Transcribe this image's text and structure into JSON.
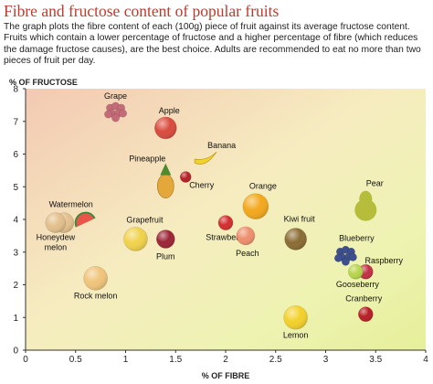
{
  "chart_data": {
    "type": "scatter",
    "title": "Fibre and fructose content of popular fruits",
    "subtitle": "The graph plots the fibre content of each (100g) piece of fruit against its average fructose content. Fruits which contain a lower percentage of fructose and a higher percentage of fibre (which reduces the damage fructose causes), are the best choice. Adults are recommended to eat no more than two pieces of fruit per day.",
    "xlabel": "% OF FIBRE",
    "ylabel": "% OF FRUCTOSE",
    "xlim": [
      0,
      4
    ],
    "ylim": [
      0,
      8
    ],
    "xticks": [
      "0",
      "0.5",
      "1",
      "1.5",
      "2",
      "2.5",
      "3",
      "3.5",
      "4"
    ],
    "yticks": [
      "0",
      "1",
      "2",
      "3",
      "4",
      "5",
      "6",
      "7",
      "8"
    ],
    "grid": false,
    "points": [
      {
        "label": "Grape",
        "x": 0.9,
        "y": 7.3
      },
      {
        "label": "Apple",
        "x": 1.4,
        "y": 6.8
      },
      {
        "label": "Banana",
        "x": 1.8,
        "y": 5.9
      },
      {
        "label": "Pineapple",
        "x": 1.4,
        "y": 5.1
      },
      {
        "label": "Cherry",
        "x": 1.6,
        "y": 5.3
      },
      {
        "label": "Orange",
        "x": 2.3,
        "y": 4.4
      },
      {
        "label": "Pear",
        "x": 3.4,
        "y": 4.4
      },
      {
        "label": "Watermelon",
        "x": 0.6,
        "y": 3.9
      },
      {
        "label": "Honeydew melon",
        "x": 0.3,
        "y": 3.9
      },
      {
        "label": "Grapefruit",
        "x": 1.1,
        "y": 3.4
      },
      {
        "label": "Strawberry",
        "x": 2.0,
        "y": 3.9
      },
      {
        "label": "Plum",
        "x": 1.4,
        "y": 3.4
      },
      {
        "label": "Peach",
        "x": 2.2,
        "y": 3.5
      },
      {
        "label": "Kiwi fruit",
        "x": 2.7,
        "y": 3.4
      },
      {
        "label": "Blueberry",
        "x": 3.2,
        "y": 2.9
      },
      {
        "label": "Raspberry",
        "x": 3.4,
        "y": 2.4
      },
      {
        "label": "Gooseberry",
        "x": 3.3,
        "y": 2.4
      },
      {
        "label": "Rock melon",
        "x": 0.7,
        "y": 2.2
      },
      {
        "label": "Cranberry",
        "x": 3.4,
        "y": 1.1
      },
      {
        "label": "Lemon",
        "x": 2.7,
        "y": 1.0
      }
    ],
    "colors": {
      "title": "#c0392b",
      "background_high": "#f3c9b3",
      "background_low": "#e6ef9a"
    }
  }
}
